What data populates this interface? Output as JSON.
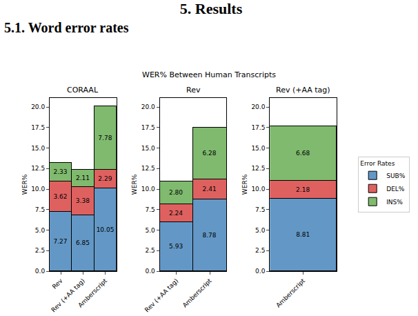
{
  "heading": [
    "5. Results",
    "5.1. Word error rates"
  ],
  "figure": {
    "title": "WER% Between Human Transcripts",
    "legend": "right",
    "legend_title": "Error Rates"
  },
  "chart_data": [
    {
      "type": "bar",
      "title": "CORAAL",
      "categories": [
        "Rev",
        "Rev (+AA tag)",
        "Amberscript"
      ],
      "stacked": true,
      "data_labels": true,
      "grid": false,
      "ylabel": "WER%",
      "ylim": [
        0,
        21.1
      ],
      "yticks": [
        {
          "value": 0,
          "label": "0.0"
        },
        {
          "value": 2.5,
          "label": "2.5"
        },
        {
          "value": 5,
          "label": "5.0"
        },
        {
          "value": 7.5,
          "label": "7.5"
        },
        {
          "value": 10,
          "label": "10.0"
        },
        {
          "value": 12.5,
          "label": "12.5"
        },
        {
          "value": 15,
          "label": "15.0"
        },
        {
          "value": 17.5,
          "label": "17.5"
        },
        {
          "value": 20,
          "label": "20.0"
        }
      ],
      "series": [
        {
          "name": "SUB%",
          "color": "#6398c6",
          "values": [
            7.27,
            6.85,
            10.05
          ],
          "value_labels": [
            "7.27",
            "6.85",
            "10.05"
          ]
        },
        {
          "name": "DEL%",
          "color": "#de6160",
          "values": [
            3.62,
            3.38,
            2.29
          ],
          "value_labels": [
            "3.62",
            "3.38",
            "2.29"
          ]
        },
        {
          "name": "INS%",
          "color": "#7fba6e",
          "values": [
            2.33,
            2.11,
            7.78
          ],
          "value_labels": [
            "2.33",
            "2.11",
            "7.78"
          ]
        }
      ]
    },
    {
      "type": "bar",
      "title": "Rev",
      "categories": [
        "Rev (+AA tag)",
        "Amberscript"
      ],
      "stacked": true,
      "data_labels": true,
      "grid": false,
      "ylabel": "WER%",
      "ylim": [
        0,
        21.1
      ],
      "yticks": [
        {
          "value": 0,
          "label": "0.0"
        },
        {
          "value": 2.5,
          "label": "2.5"
        },
        {
          "value": 5,
          "label": "5.0"
        },
        {
          "value": 7.5,
          "label": "7.5"
        },
        {
          "value": 10,
          "label": "10.0"
        },
        {
          "value": 12.5,
          "label": "12.5"
        },
        {
          "value": 15,
          "label": "15.0"
        },
        {
          "value": 17.5,
          "label": "17.5"
        },
        {
          "value": 20,
          "label": "20.0"
        }
      ],
      "series": [
        {
          "name": "SUB%",
          "color": "#6398c6",
          "values": [
            5.93,
            8.78
          ],
          "value_labels": [
            "5.93",
            "8.78"
          ]
        },
        {
          "name": "DEL%",
          "color": "#de6160",
          "values": [
            2.24,
            2.41
          ],
          "value_labels": [
            "2.24",
            "2.41"
          ]
        },
        {
          "name": "INS%",
          "color": "#7fba6e",
          "values": [
            2.8,
            6.28
          ],
          "value_labels": [
            "2.80",
            "6.28"
          ]
        }
      ]
    },
    {
      "type": "bar",
      "title": "Rev (+AA tag)",
      "categories": [
        "Amberscript"
      ],
      "stacked": true,
      "data_labels": true,
      "grid": false,
      "ylabel": "WER%",
      "ylim": [
        0,
        21.1
      ],
      "yticks": [
        {
          "value": 0,
          "label": "0.0"
        },
        {
          "value": 2.5,
          "label": "2.5"
        },
        {
          "value": 5,
          "label": "5.0"
        },
        {
          "value": 7.5,
          "label": "7.5"
        },
        {
          "value": 10,
          "label": "10.0"
        },
        {
          "value": 12.5,
          "label": "12.5"
        },
        {
          "value": 15,
          "label": "15.0"
        },
        {
          "value": 17.5,
          "label": "17.5"
        },
        {
          "value": 20,
          "label": "20.0"
        }
      ],
      "series": [
        {
          "name": "SUB%",
          "color": "#6398c6",
          "values": [
            8.81
          ],
          "value_labels": [
            "8.81"
          ]
        },
        {
          "name": "DEL%",
          "color": "#de6160",
          "values": [
            2.18
          ],
          "value_labels": [
            "2.18"
          ]
        },
        {
          "name": "INS%",
          "color": "#7fba6e",
          "values": [
            6.68
          ],
          "value_labels": [
            "6.68"
          ]
        }
      ]
    }
  ]
}
